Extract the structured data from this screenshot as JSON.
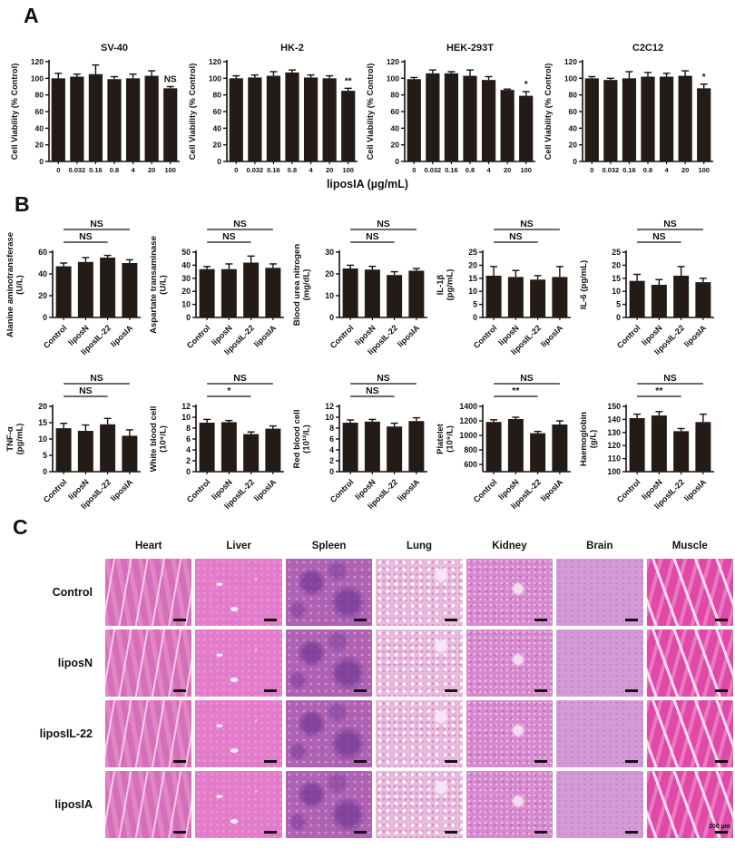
{
  "figure": {
    "panels": {
      "a": {
        "label": "A",
        "xlabel": "liposIA (µg/mL)"
      },
      "b": {
        "label": "B"
      },
      "c": {
        "label": "C",
        "scale_bar_label": "200 µm"
      }
    }
  },
  "colors": {
    "bar": "#241a16",
    "axis": "#111111"
  },
  "chart_data": [
    {
      "panel": "A",
      "type": "bar",
      "title": "SV-40",
      "ylabel_lines": [
        "Cell Viability (% Control)"
      ],
      "ylim": [
        0,
        120
      ],
      "yticks": [
        0,
        20,
        40,
        60,
        80,
        100,
        120
      ],
      "categories": [
        "0",
        "0.032",
        "0.16",
        "0.8",
        "4",
        "20",
        "100"
      ],
      "values": [
        100,
        102,
        105,
        99,
        100,
        103,
        88
      ],
      "errors": [
        6,
        3,
        11,
        3,
        5,
        6,
        2
      ],
      "annotations": [
        {
          "label": "NS",
          "type": "above-last-bar"
        }
      ]
    },
    {
      "panel": "A",
      "type": "bar",
      "title": "HK-2",
      "ylabel_lines": [
        "Cell Viability (% Control)"
      ],
      "ylim": [
        0,
        120
      ],
      "yticks": [
        0,
        20,
        40,
        60,
        80,
        100,
        120
      ],
      "categories": [
        "0",
        "0.032",
        "0.16",
        "0.8",
        "4",
        "20",
        "100"
      ],
      "values": [
        100,
        101,
        103,
        107,
        101,
        100,
        85
      ],
      "errors": [
        3,
        3,
        5,
        3,
        3,
        3,
        3
      ],
      "annotations": [
        {
          "label": "**",
          "type": "above-last-bar"
        }
      ]
    },
    {
      "panel": "A",
      "type": "bar",
      "title": "HEK-293T",
      "ylabel_lines": [
        "Cell Viability (% Control)"
      ],
      "ylim": [
        0,
        120
      ],
      "yticks": [
        0,
        20,
        40,
        60,
        80,
        100,
        120
      ],
      "categories": [
        "0",
        "0.032",
        "0.16",
        "0.8",
        "4",
        "20",
        "100"
      ],
      "values": [
        99,
        106,
        106,
        103,
        98,
        86,
        79
      ],
      "errors": [
        2,
        4,
        2,
        7,
        4,
        1,
        5
      ],
      "annotations": [
        {
          "label": "*",
          "type": "above-last-bar"
        }
      ]
    },
    {
      "panel": "A",
      "type": "bar",
      "title": "C2C12",
      "ylabel_lines": [
        "Cell Viability (% Control)"
      ],
      "ylim": [
        0,
        120
      ],
      "yticks": [
        0,
        20,
        40,
        60,
        80,
        100,
        120
      ],
      "categories": [
        "0",
        "0.032",
        "0.16",
        "0.8",
        "4",
        "20",
        "100"
      ],
      "values": [
        100,
        98,
        100,
        102,
        102,
        103,
        88
      ],
      "errors": [
        2,
        2,
        8,
        5,
        4,
        6,
        5
      ],
      "annotations": [
        {
          "label": "*",
          "type": "above-last-bar"
        }
      ]
    },
    {
      "panel": "B",
      "row": 1,
      "type": "bar",
      "ylabel_lines": [
        "Alanine aminotransferase",
        "(U/L)"
      ],
      "ylim": [
        0,
        60
      ],
      "yticks": [
        0,
        20,
        40,
        60
      ],
      "categories": [
        "Control",
        "liposN",
        "liposIL-22",
        "liposIA"
      ],
      "values": [
        47,
        51,
        55,
        50
      ],
      "errors": [
        3,
        4,
        2,
        3
      ],
      "annotations": [
        {
          "label": "NS",
          "from": 0,
          "to": 3
        },
        {
          "label": "NS",
          "from": 0,
          "to": 2
        }
      ]
    },
    {
      "panel": "B",
      "row": 1,
      "type": "bar",
      "ylabel_lines": [
        "Aspartate transaminase",
        "(U/L)"
      ],
      "ylim": [
        0,
        50
      ],
      "yticks": [
        0,
        10,
        20,
        30,
        40,
        50
      ],
      "categories": [
        "Control",
        "liposN",
        "liposIL-22",
        "liposIA"
      ],
      "values": [
        37,
        37,
        42,
        38
      ],
      "errors": [
        2,
        4,
        5,
        3
      ],
      "annotations": [
        {
          "label": "NS",
          "from": 0,
          "to": 3
        },
        {
          "label": "NS",
          "from": 0,
          "to": 2
        }
      ]
    },
    {
      "panel": "B",
      "row": 1,
      "type": "bar",
      "ylabel_lines": [
        "Blood urea nitrogen",
        "(mg/dL)"
      ],
      "ylim": [
        0,
        30
      ],
      "yticks": [
        0,
        10,
        20,
        30
      ],
      "categories": [
        "Control",
        "liposN",
        "liposIL-22",
        "liposIA"
      ],
      "values": [
        22.5,
        22,
        19.5,
        21.5
      ],
      "errors": [
        1.5,
        1.5,
        1.5,
        1
      ],
      "annotations": [
        {
          "label": "NS",
          "from": 0,
          "to": 3
        },
        {
          "label": "NS",
          "from": 0,
          "to": 2
        }
      ]
    },
    {
      "panel": "B",
      "row": 1,
      "type": "bar",
      "ylabel_lines": [
        "IL-1β",
        "(pg/mL)"
      ],
      "ylim": [
        0,
        25
      ],
      "yticks": [
        0,
        5,
        10,
        15,
        20,
        25
      ],
      "categories": [
        "Control",
        "liposN",
        "liposIL-22",
        "liposIA"
      ],
      "values": [
        16,
        15.5,
        14.5,
        15.5
      ],
      "errors": [
        3.5,
        2.5,
        1.5,
        4
      ],
      "annotations": [
        {
          "label": "NS",
          "from": 0,
          "to": 3
        },
        {
          "label": "NS",
          "from": 0,
          "to": 2
        }
      ]
    },
    {
      "panel": "B",
      "row": 1,
      "type": "bar",
      "ylabel_lines": [
        "IL-6 (pg/mL)"
      ],
      "ylim": [
        0,
        25
      ],
      "yticks": [
        0,
        5,
        10,
        15,
        20,
        25
      ],
      "categories": [
        "Control",
        "liposN",
        "liposIL-22",
        "liposIA"
      ],
      "values": [
        14,
        12.5,
        16,
        13.5
      ],
      "errors": [
        2.5,
        2,
        3.5,
        1.5
      ],
      "annotations": [
        {
          "label": "NS",
          "from": 0,
          "to": 3
        },
        {
          "label": "NS",
          "from": 0,
          "to": 2
        }
      ]
    },
    {
      "panel": "B",
      "row": 2,
      "type": "bar",
      "ylabel_lines": [
        "TNF-α",
        "(pg/mL)"
      ],
      "ylim": [
        0,
        20
      ],
      "yticks": [
        0,
        5,
        10,
        15,
        20
      ],
      "categories": [
        "Control",
        "liposN",
        "liposIL-22",
        "liposIA"
      ],
      "values": [
        13.3,
        12.5,
        14.5,
        11
      ],
      "errors": [
        1.5,
        1.8,
        1.8,
        1.8
      ],
      "annotations": [
        {
          "label": "NS",
          "from": 0,
          "to": 3
        },
        {
          "label": "NS",
          "from": 0,
          "to": 2
        }
      ]
    },
    {
      "panel": "B",
      "row": 2,
      "type": "bar",
      "ylabel_lines": [
        "White blood cell",
        "(10⁹/L)"
      ],
      "ylim": [
        0,
        12
      ],
      "yticks": [
        0,
        2,
        4,
        6,
        8,
        10,
        12
      ],
      "categories": [
        "Control",
        "liposN",
        "liposIL-22",
        "liposIA"
      ],
      "values": [
        9,
        9.1,
        6.9,
        7.9
      ],
      "errors": [
        0.6,
        0.3,
        0.4,
        0.5
      ],
      "annotations": [
        {
          "label": "NS",
          "from": 0,
          "to": 3
        },
        {
          "label": "*",
          "from": 0,
          "to": 2
        }
      ]
    },
    {
      "panel": "B",
      "row": 2,
      "type": "bar",
      "ylabel_lines": [
        "Red blood cell",
        "(10¹²/L)"
      ],
      "ylim": [
        0,
        12
      ],
      "yticks": [
        0,
        2,
        4,
        6,
        8,
        10,
        12
      ],
      "categories": [
        "Control",
        "liposN",
        "liposIL-22",
        "liposIA"
      ],
      "values": [
        9,
        9.2,
        8.3,
        9.3
      ],
      "errors": [
        0.5,
        0.4,
        0.6,
        0.6
      ],
      "annotations": [
        {
          "label": "NS",
          "from": 0,
          "to": 3
        },
        {
          "label": "NS",
          "from": 0,
          "to": 2
        }
      ]
    },
    {
      "panel": "B",
      "row": 2,
      "type": "bar",
      "ylabel_lines": [
        "Platelet",
        "(10⁹/L)"
      ],
      "ylim": [
        500,
        1400
      ],
      "yticks": [
        600,
        800,
        1000,
        1200,
        1400
      ],
      "categories": [
        "Control",
        "liposN",
        "liposIL-22",
        "liposIA"
      ],
      "values": [
        1185,
        1225,
        1030,
        1150
      ],
      "errors": [
        30,
        25,
        25,
        50
      ],
      "annotations": [
        {
          "label": "NS",
          "from": 0,
          "to": 3
        },
        {
          "label": "**",
          "from": 0,
          "to": 2
        }
      ]
    },
    {
      "panel": "B",
      "row": 2,
      "type": "bar",
      "ylabel_lines": [
        "Haemoglobin",
        "(g/L)"
      ],
      "ylim": [
        100,
        150
      ],
      "yticks": [
        100,
        110,
        120,
        130,
        140,
        150
      ],
      "categories": [
        "Control",
        "liposN",
        "liposIL-22",
        "liposIA"
      ],
      "values": [
        141,
        143,
        131,
        138
      ],
      "errors": [
        3,
        3,
        2,
        6
      ],
      "annotations": [
        {
          "label": "NS",
          "from": 0,
          "to": 3
        },
        {
          "label": "**",
          "from": 0,
          "to": 2
        }
      ]
    }
  ],
  "panel_c": {
    "columns": [
      {
        "label": "Heart",
        "tissue": "heart"
      },
      {
        "label": "Liver",
        "tissue": "liver"
      },
      {
        "label": "Spleen",
        "tissue": "spleen"
      },
      {
        "label": "Lung",
        "tissue": "lung"
      },
      {
        "label": "Kidney",
        "tissue": "kidney"
      },
      {
        "label": "Brain",
        "tissue": "brain"
      },
      {
        "label": "Muscle",
        "tissue": "muscle"
      }
    ],
    "rows": [
      "Control",
      "liposN",
      "liposIL-22",
      "liposIA"
    ]
  }
}
